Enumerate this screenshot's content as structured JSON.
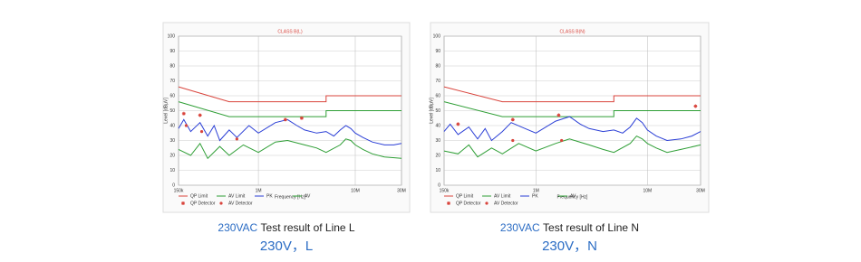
{
  "chart_data": [
    {
      "type": "line",
      "title": "CLASS B(L)",
      "x_label": "Frequency [Hz]",
      "y_label": "Level [dBµV]",
      "xscale": "log",
      "xlim": [
        150000,
        30000000
      ],
      "xticks": [
        {
          "value": 150000,
          "label": "150k"
        },
        {
          "value": 1000000,
          "label": "1M"
        },
        {
          "value": 10000000,
          "label": "10M"
        },
        {
          "value": 30000000,
          "label": "30M"
        }
      ],
      "ylim": [
        0,
        100
      ],
      "yticks": [
        0,
        10,
        20,
        30,
        40,
        50,
        60,
        70,
        80,
        90,
        100
      ],
      "grid": true,
      "series": [
        {
          "name": "QP Limit",
          "color": "#d9443c",
          "style": "line",
          "x": [
            150000,
            500000,
            500000,
            5000000,
            5000000,
            30000000
          ],
          "values": [
            66,
            56,
            56,
            56,
            60,
            60
          ]
        },
        {
          "name": "AV Limit",
          "color": "#2e9e35",
          "style": "line",
          "x": [
            150000,
            500000,
            500000,
            5000000,
            5000000,
            30000000
          ],
          "values": [
            56,
            46,
            46,
            46,
            50,
            50
          ]
        },
        {
          "name": "PK",
          "color": "#2b3fd6",
          "style": "line",
          "x": [
            150000,
            170000,
            200000,
            250000,
            300000,
            350000,
            400000,
            500000,
            600000,
            800000,
            1000000,
            1500000,
            2000000,
            2500000,
            3000000,
            4000000,
            5000000,
            6000000,
            7000000,
            8000000,
            9000000,
            10000000,
            12000000,
            15000000,
            20000000,
            25000000,
            30000000
          ],
          "values": [
            38,
            44,
            36,
            42,
            33,
            40,
            30,
            37,
            32,
            40,
            35,
            42,
            44,
            40,
            37,
            35,
            36,
            33,
            37,
            40,
            38,
            35,
            32,
            29,
            27,
            27,
            28
          ]
        },
        {
          "name": "AV",
          "color": "#2e9e35",
          "style": "line",
          "x": [
            150000,
            200000,
            250000,
            300000,
            400000,
            500000,
            700000,
            1000000,
            1500000,
            2000000,
            3000000,
            4000000,
            5000000,
            7000000,
            8000000,
            9000000,
            10000000,
            12000000,
            15000000,
            20000000,
            30000000
          ],
          "values": [
            24,
            20,
            28,
            18,
            26,
            20,
            27,
            22,
            29,
            30,
            27,
            25,
            22,
            27,
            31,
            30,
            27,
            24,
            21,
            19,
            18
          ]
        },
        {
          "name": "QP Detector",
          "color": "#d9443c",
          "style": "asterisk",
          "x": [
            170000,
            250000,
            1900000,
            2800000
          ],
          "values": [
            48,
            47,
            44,
            45
          ]
        },
        {
          "name": "AV Detector",
          "color": "#d9443c",
          "style": "dot",
          "x": [
            180000,
            260000,
            600000
          ],
          "values": [
            40,
            36,
            31
          ]
        }
      ]
    },
    {
      "type": "line",
      "title": "CLASS B(N)",
      "x_label": "Frequency [Hz]",
      "y_label": "Level [dBµV]",
      "xscale": "log",
      "xlim": [
        150000,
        30000000
      ],
      "xticks": [
        {
          "value": 150000,
          "label": "150k"
        },
        {
          "value": 1000000,
          "label": "1M"
        },
        {
          "value": 10000000,
          "label": "10M"
        },
        {
          "value": 30000000,
          "label": "30M"
        }
      ],
      "ylim": [
        0,
        100
      ],
      "yticks": [
        0,
        10,
        20,
        30,
        40,
        50,
        60,
        70,
        80,
        90,
        100
      ],
      "grid": true,
      "series": [
        {
          "name": "QP Limit",
          "color": "#d9443c",
          "style": "line",
          "x": [
            150000,
            500000,
            500000,
            5000000,
            5000000,
            30000000
          ],
          "values": [
            66,
            56,
            56,
            56,
            60,
            60
          ]
        },
        {
          "name": "AV Limit",
          "color": "#2e9e35",
          "style": "line",
          "x": [
            150000,
            500000,
            500000,
            5000000,
            5000000,
            30000000
          ],
          "values": [
            56,
            46,
            46,
            46,
            50,
            50
          ]
        },
        {
          "name": "PK",
          "color": "#2b3fd6",
          "style": "line",
          "x": [
            150000,
            170000,
            200000,
            250000,
            300000,
            350000,
            400000,
            500000,
            600000,
            800000,
            1000000,
            1500000,
            2000000,
            2500000,
            3000000,
            4000000,
            5000000,
            6000000,
            7000000,
            8000000,
            9000000,
            10000000,
            12000000,
            15000000,
            20000000,
            25000000,
            30000000
          ],
          "values": [
            36,
            41,
            34,
            39,
            31,
            38,
            30,
            36,
            42,
            38,
            35,
            43,
            46,
            41,
            38,
            36,
            37,
            35,
            39,
            45,
            42,
            37,
            33,
            30,
            31,
            33,
            36
          ]
        },
        {
          "name": "AV",
          "color": "#2e9e35",
          "style": "line",
          "x": [
            150000,
            200000,
            250000,
            300000,
            400000,
            500000,
            700000,
            1000000,
            1500000,
            2000000,
            3000000,
            4000000,
            5000000,
            7000000,
            8000000,
            9000000,
            10000000,
            12000000,
            15000000,
            20000000,
            30000000
          ],
          "values": [
            23,
            21,
            27,
            19,
            25,
            21,
            28,
            23,
            28,
            31,
            27,
            24,
            22,
            28,
            33,
            31,
            28,
            25,
            22,
            24,
            27
          ]
        },
        {
          "name": "QP Detector",
          "color": "#d9443c",
          "style": "asterisk",
          "x": [
            200000,
            620000,
            1600000,
            27000000
          ],
          "values": [
            41,
            44,
            47,
            53
          ]
        },
        {
          "name": "AV Detector",
          "color": "#d9443c",
          "style": "dot",
          "x": [
            620000,
            1700000
          ],
          "values": [
            30,
            30
          ]
        }
      ]
    }
  ],
  "captions": [
    {
      "highlight": "230VAC",
      "text": "Test result of Line L",
      "sub": "230V，L"
    },
    {
      "highlight": "230VAC",
      "text": "Test result of Line N",
      "sub": "230V，N"
    }
  ]
}
